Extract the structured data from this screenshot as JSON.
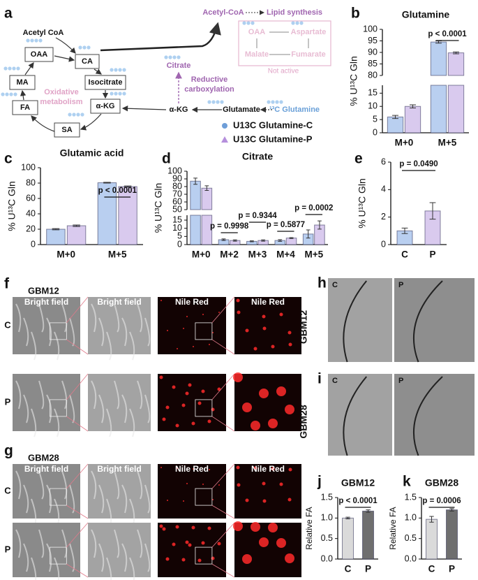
{
  "diagram": {
    "panel": "a",
    "acetyl_coa": "Acetyl CoA",
    "nodes": [
      "OAA",
      "CA",
      "Isocitrate",
      "α-KG",
      "SA",
      "FA",
      "MA"
    ],
    "oxidative": [
      "Oxidative",
      "metabolism"
    ],
    "citrate": "Citrate",
    "reductive": [
      "Reductive",
      "carboxylation"
    ],
    "alpha_kg": "α-KG",
    "glutamate": "Glutamate",
    "glutamine": "¹³C Glutamine",
    "acetyl_coa_lipid": "Acetyl-CoA",
    "lipid": "Lipid synthesis",
    "inactive_nodes": [
      "OAA",
      "Aspartate",
      "Malate",
      "Fumarate"
    ],
    "not_active": "Not active"
  },
  "images": {
    "f": {
      "panel": "f",
      "cell_line": "GBM12",
      "headers": [
        "Bright field",
        "Bright field",
        "Nile Red",
        "Nile Red"
      ],
      "rows": [
        "C",
        "P"
      ]
    },
    "g": {
      "panel": "g",
      "cell_line": "GBM28",
      "headers": [
        "Bright field",
        "Bright field",
        "Nile Red",
        "Nile Red"
      ],
      "rows": [
        "C",
        "P"
      ]
    },
    "h": {
      "panel": "h",
      "cell_line": "GBM12",
      "labels": [
        "C",
        "P"
      ]
    },
    "i": {
      "panel": "i",
      "cell_line": "GBM28",
      "labels": [
        "C",
        "P"
      ]
    }
  },
  "chart_data": [
    {
      "type": "bar",
      "panel": "b",
      "title": "Glutamine",
      "ylabel": "% U¹³C Gln",
      "categories": [
        "M+0",
        "M+5"
      ],
      "series": [
        {
          "name": "U13C Glutamine-C",
          "marker": "circle",
          "color": "#b9cff0",
          "values": [
            6,
            94.5
          ],
          "errors": [
            0.6,
            0.5
          ]
        },
        {
          "name": "U13C Glutamine-P",
          "marker": "triangle",
          "color": "#d9caee",
          "values": [
            10,
            89.8
          ],
          "errors": [
            0.6,
            0.4
          ]
        }
      ],
      "ylim": [
        0,
        100
      ],
      "ybreak": [
        18,
        80
      ],
      "yticks": [
        0,
        5,
        10,
        15,
        80,
        85,
        90,
        95,
        100
      ],
      "annotations": [
        "p < 0.0001"
      ]
    },
    {
      "type": "bar",
      "panel": "c",
      "title": "Glutamic acid",
      "ylabel": "% U¹³C Gln",
      "categories": [
        "M+0",
        "M+5"
      ],
      "series": [
        {
          "color": "#b9cff0",
          "values": [
            20,
            80.5
          ],
          "errors": [
            0.8,
            0.5
          ]
        },
        {
          "color": "#d9caee",
          "values": [
            24.5,
            75.5
          ],
          "errors": [
            1,
            0.8
          ]
        }
      ],
      "ylim": [
        0,
        100
      ],
      "yticks": [
        0,
        20,
        40,
        60,
        80,
        100
      ],
      "annotations": [
        "p < 0.0001"
      ]
    },
    {
      "type": "bar",
      "panel": "d",
      "title": "Citrate",
      "ylabel": "% U¹³C Gln",
      "categories": [
        "M+0",
        "M+2",
        "M+3",
        "M+4",
        "M+5"
      ],
      "series": [
        {
          "color": "#b9cff0",
          "values": [
            87,
            3,
            2,
            2.5,
            6.5
          ],
          "errors": [
            4,
            0.5,
            0.3,
            0.5,
            2.5
          ]
        },
        {
          "color": "#d9caee",
          "values": [
            78,
            2.5,
            2.5,
            4,
            12
          ],
          "errors": [
            3,
            0.4,
            0.4,
            0.3,
            2.5
          ]
        }
      ],
      "ylim": [
        0,
        100
      ],
      "ybreak": [
        18,
        50
      ],
      "yticks": [
        0,
        5,
        10,
        15,
        50,
        60,
        70,
        80,
        90,
        100
      ],
      "annotations": [
        "p = 0.9998",
        "p = 0.9344",
        "p = 0.5877",
        "p = 0.0002"
      ]
    },
    {
      "type": "bar",
      "panel": "e",
      "ylabel": "% U¹³C Gln",
      "categories": [
        "C",
        "P"
      ],
      "series": [
        {
          "colors": [
            "#b9cff0",
            "#d9caee"
          ],
          "values": [
            1.0,
            2.45
          ],
          "errors": [
            0.2,
            0.6
          ]
        }
      ],
      "ylim": [
        0,
        6
      ],
      "yticks": [
        0,
        2,
        4,
        6
      ],
      "annotations": [
        "p = 0.0490"
      ]
    },
    {
      "type": "bar",
      "panel": "j",
      "title": "GBM12",
      "ylabel": "Relative FA",
      "categories": [
        "C",
        "P"
      ],
      "series": [
        {
          "colors": [
            "#dadada",
            "#6f6f6f"
          ],
          "values": [
            1.0,
            1.17
          ],
          "errors": [
            0.02,
            0.03
          ]
        }
      ],
      "ylim": [
        0,
        1.5
      ],
      "yticks": [
        {
          "value": 0,
          "label": "0.0"
        },
        0.5,
        {
          "value": 1,
          "label": "1.0"
        },
        1.5
      ],
      "annotations": [
        "p < 0.0001"
      ]
    },
    {
      "type": "bar",
      "panel": "k",
      "title": "GBM28",
      "ylabel": "Relative FA",
      "categories": [
        "C",
        "P"
      ],
      "series": [
        {
          "colors": [
            "#dadada",
            "#6f6f6f"
          ],
          "values": [
            0.97,
            1.2
          ],
          "errors": [
            0.07,
            0.03
          ]
        }
      ],
      "ylim": [
        0,
        1.5
      ],
      "yticks": [
        {
          "value": 0,
          "label": "0.0"
        },
        0.5,
        {
          "value": 1,
          "label": "1.0"
        },
        1.5
      ],
      "annotations": [
        "p = 0.0006"
      ]
    }
  ]
}
